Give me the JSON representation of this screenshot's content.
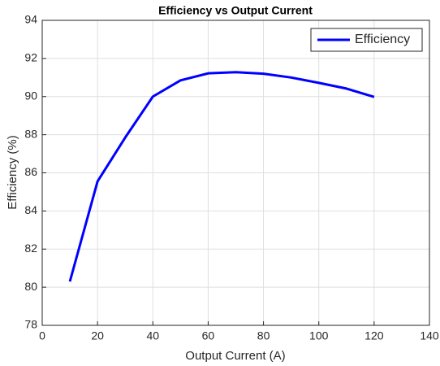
{
  "chart_data": {
    "type": "line",
    "title": "Efficiency vs Output Current",
    "x_label": "Output Current (A)",
    "y_label": "Efficiency (%)",
    "x": [
      10,
      20,
      30,
      40,
      50,
      60,
      70,
      80,
      90,
      100,
      110,
      120
    ],
    "series": [
      {
        "name": "Efficiency",
        "color": "#0000ff",
        "values": [
          80.3,
          85.55,
          87.85,
          90.0,
          90.85,
          91.22,
          91.28,
          91.2,
          91.0,
          90.72,
          90.42,
          89.98
        ]
      }
    ],
    "xlim": [
      0,
      140
    ],
    "xticks": [
      0,
      20,
      40,
      60,
      80,
      100,
      120,
      140
    ],
    "ylim": [
      78,
      94
    ],
    "yticks": [
      78,
      80,
      82,
      84,
      86,
      88,
      90,
      92,
      94
    ],
    "grid": true,
    "legend": "top-right"
  }
}
